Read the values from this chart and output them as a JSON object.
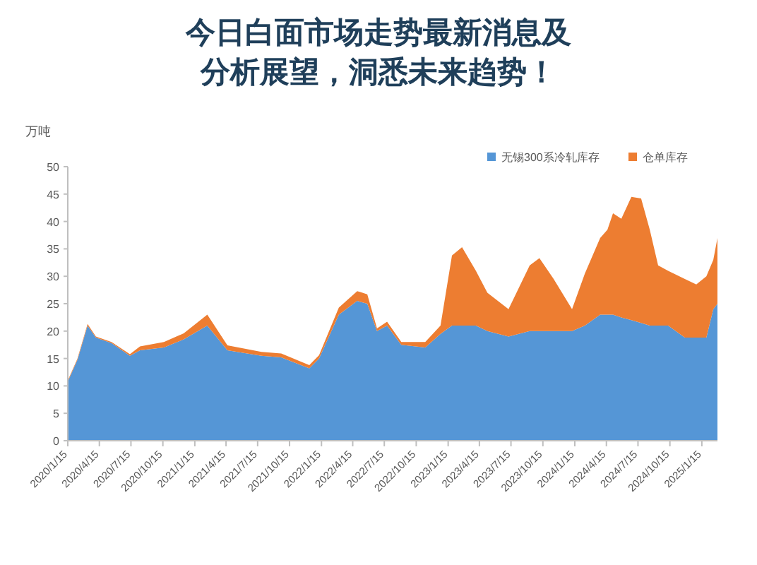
{
  "chart_data": {
    "type": "area",
    "stacked": true,
    "title": "今日白面市场走势最新消息及分析展望，洞悉未来趋势！",
    "ylabel": "万吨",
    "x": [
      "2020-01-15",
      "2020-02-12",
      "2020-03-12",
      "2020-04-05",
      "2020-05-20",
      "2020-07-12",
      "2020-08-10",
      "2020-10-18",
      "2020-12-14",
      "2021-02-20",
      "2021-04-19",
      "2021-07-26",
      "2021-09-21",
      "2021-12-11",
      "2022-01-08",
      "2022-03-06",
      "2022-04-28",
      "2022-05-27",
      "2022-06-24",
      "2022-07-23",
      "2022-09-02",
      "2022-11-10",
      "2022-12-24",
      "2023-01-26",
      "2023-02-24",
      "2023-04-05",
      "2023-05-08",
      "2023-07-08",
      "2023-09-07",
      "2023-10-05",
      "2023-11-15",
      "2024-01-07",
      "2024-02-13",
      "2024-03-28",
      "2024-04-18",
      "2024-05-04",
      "2024-05-28",
      "2024-06-26",
      "2024-07-24",
      "2024-08-18",
      "2024-09-11",
      "2024-10-10",
      "2024-11-27",
      "2024-12-30",
      "2025-01-28",
      "2025-02-17",
      "2025-03-01"
    ],
    "series": [
      {
        "name": "无锡300系冷轧库存",
        "color": "#5596d6",
        "values": [
          10.8,
          14.8,
          21.0,
          18.8,
          17.8,
          15.5,
          16.5,
          17,
          18.5,
          21,
          16.5,
          15.5,
          15.2,
          13.2,
          15,
          23,
          25.5,
          25,
          20,
          21,
          17.5,
          17,
          19.5,
          21,
          21,
          21,
          20,
          19,
          20,
          20,
          20,
          20,
          21,
          23,
          23,
          23,
          22.5,
          22,
          21.5,
          21,
          21,
          21,
          18.8,
          18.8,
          18.8,
          24,
          25
        ]
      },
      {
        "name": "仓单库存",
        "color": "#ed7d31",
        "values": [
          0.2,
          0.2,
          0.3,
          0.2,
          0.2,
          0.3,
          0.7,
          1,
          1.1,
          2,
          0.9,
          0.7,
          0.7,
          0.6,
          0.6,
          1.3,
          1.8,
          1.7,
          0.5,
          0.7,
          0.5,
          1,
          1.5,
          12.8,
          14.3,
          10,
          7,
          5,
          12,
          13.3,
          9.5,
          4,
          9.5,
          14,
          15.5,
          18.5,
          18,
          22.5,
          22.7,
          17.5,
          11,
          10,
          10.7,
          9.7,
          11.2,
          9,
          12
        ]
      }
    ],
    "xlim": [
      "2020-01-15",
      "2025-03-01"
    ],
    "xticks": [
      {
        "value": "2020-01-15",
        "label": "2020/1/15"
      },
      {
        "value": "2020-04-15",
        "label": "2020/4/15"
      },
      {
        "value": "2020-07-15",
        "label": "2020/7/15"
      },
      {
        "value": "2020-10-15",
        "label": "2020/10/15"
      },
      {
        "value": "2021-01-15",
        "label": "2021/1/15"
      },
      {
        "value": "2021-04-15",
        "label": "2021/4/15"
      },
      {
        "value": "2021-07-15",
        "label": "2021/7/15"
      },
      {
        "value": "2021-10-15",
        "label": "2021/10/15"
      },
      {
        "value": "2022-01-15",
        "label": "2022/1/15"
      },
      {
        "value": "2022-04-15",
        "label": "2022/4/15"
      },
      {
        "value": "2022-07-15",
        "label": "2022/7/15"
      },
      {
        "value": "2022-10-15",
        "label": "2022/10/15"
      },
      {
        "value": "2023-01-15",
        "label": "2023/1/15"
      },
      {
        "value": "2023-04-15",
        "label": "2023/4/15"
      },
      {
        "value": "2023-07-15",
        "label": "2023/7/15"
      },
      {
        "value": "2023-10-15",
        "label": "2023/10/15"
      },
      {
        "value": "2024-01-15",
        "label": "2024/1/15"
      },
      {
        "value": "2024-04-15",
        "label": "2024/4/15"
      },
      {
        "value": "2024-07-15",
        "label": "2024/7/15"
      },
      {
        "value": "2024-10-15",
        "label": "2024/10/15"
      },
      {
        "value": "2025-01-15",
        "label": "2025/1/15"
      }
    ],
    "ylim": [
      0,
      50
    ],
    "yticks": [
      0,
      5,
      10,
      15,
      20,
      25,
      30,
      35,
      40,
      45,
      50
    ],
    "legend": "top right"
  }
}
